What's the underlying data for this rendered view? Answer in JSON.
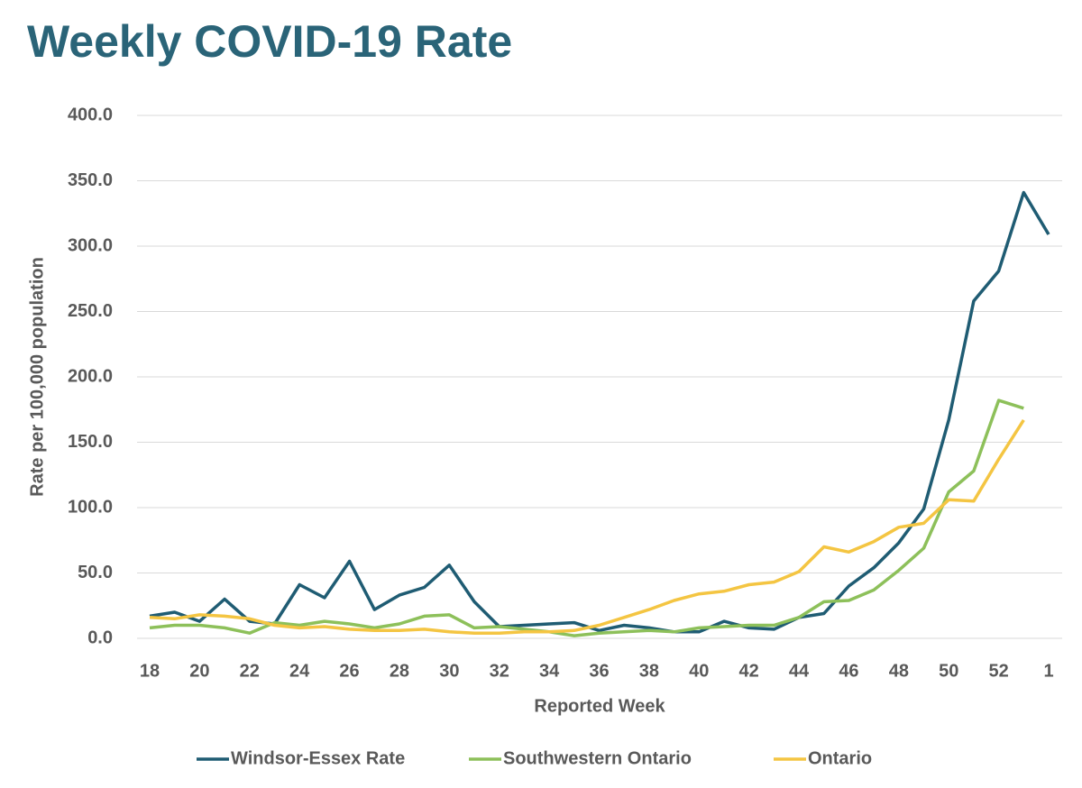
{
  "chart_data": {
    "type": "line",
    "title": "Weekly COVID-19 Rate",
    "x_label": "Reported Week",
    "y_label": "Rate per 100,000 population",
    "categories": [
      "18",
      null,
      "20",
      null,
      "22",
      null,
      "24",
      null,
      "26",
      null,
      "28",
      null,
      "30",
      null,
      "32",
      null,
      "34",
      null,
      "36",
      null,
      "38",
      null,
      "40",
      null,
      "42",
      null,
      "44",
      null,
      "46",
      null,
      "48",
      null,
      "50",
      null,
      "52",
      null,
      "1"
    ],
    "series": [
      {
        "name": "Windsor-Essex Rate",
        "color": "#1f5c73",
        "values": [
          17,
          20,
          13,
          30,
          13,
          11,
          41,
          31,
          59,
          22,
          33,
          39,
          56,
          28,
          9,
          10,
          11,
          12,
          6,
          10,
          8,
          5,
          5,
          13,
          8,
          7,
          16,
          19,
          40,
          54,
          73,
          99,
          167,
          258,
          281,
          341,
          309
        ]
      },
      {
        "name": "Southwestern Ontario",
        "color": "#8dc05a",
        "values": [
          8,
          10,
          10,
          8,
          4,
          12,
          10,
          13,
          11,
          8,
          11,
          17,
          18,
          8,
          9,
          7,
          5,
          2,
          4,
          5,
          6,
          5,
          8,
          9,
          10,
          10,
          16,
          28,
          29,
          37,
          52,
          69,
          112,
          128,
          182,
          176,
          null
        ]
      },
      {
        "name": "Ontario",
        "color": "#f4c542",
        "values": [
          16,
          15,
          18,
          17,
          15,
          10,
          8,
          9,
          7,
          6,
          6,
          7,
          5,
          4,
          4,
          5,
          5,
          6,
          10,
          16,
          22,
          29,
          34,
          36,
          41,
          43,
          51,
          70,
          66,
          74,
          85,
          88,
          106,
          105,
          137,
          167,
          null
        ]
      }
    ],
    "ylim": [
      0,
      400
    ],
    "yticks": [
      {
        "value": 0,
        "label": "0.0"
      },
      {
        "value": 50,
        "label": "50.0"
      },
      {
        "value": 100,
        "label": "100.0"
      },
      {
        "value": 150,
        "label": "150.0"
      },
      {
        "value": 200,
        "label": "200.0"
      },
      {
        "value": 250,
        "label": "250.0"
      },
      {
        "value": 300,
        "label": "300.0"
      },
      {
        "value": 350,
        "label": "350.0"
      },
      {
        "value": 400,
        "label": "400.0"
      }
    ],
    "grid": true,
    "legend": "bottom"
  }
}
